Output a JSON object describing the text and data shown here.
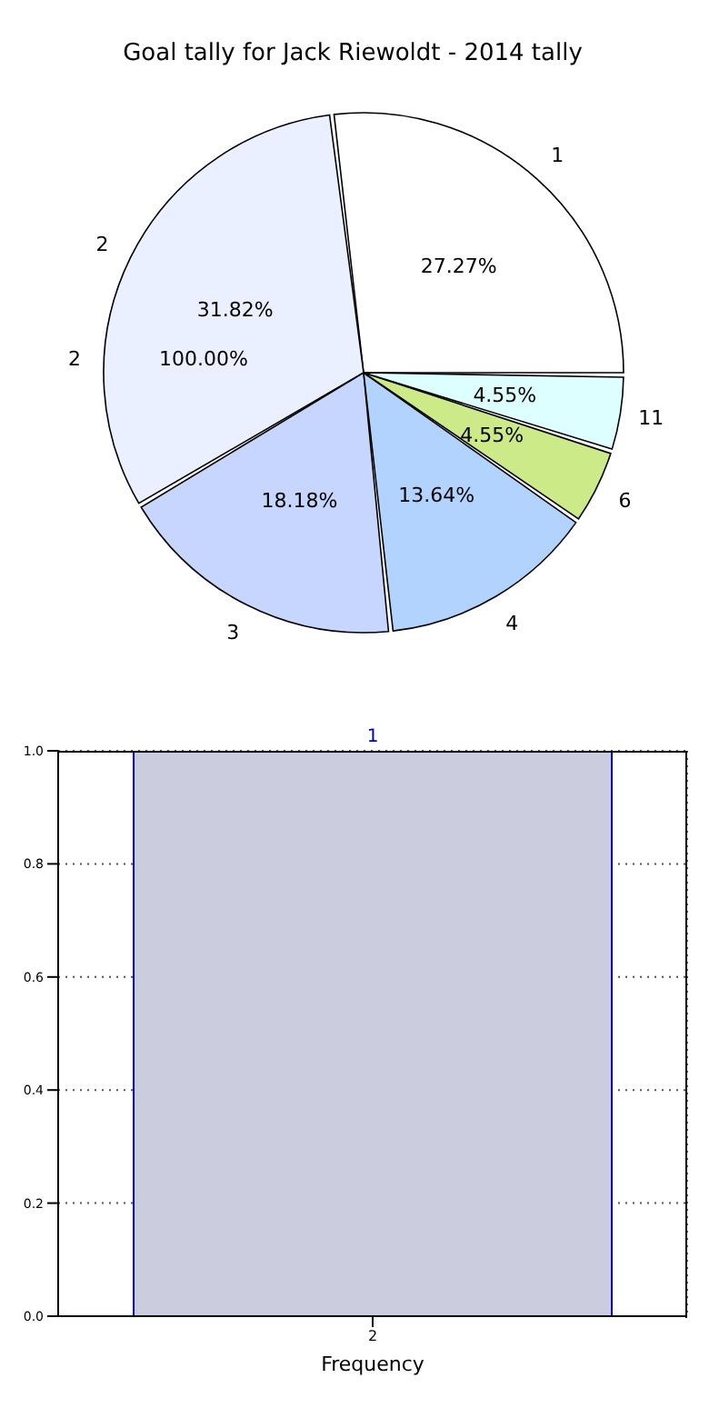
{
  "chart_data": [
    {
      "type": "pie",
      "title": "Goal tally for Jack Riewoldt - 2014 tally",
      "categories": [
        "1",
        "2",
        "3",
        "4",
        "6",
        "11"
      ],
      "values": [
        27.27,
        31.82,
        18.18,
        13.64,
        4.55,
        4.55
      ],
      "colors": [
        "#ffffff",
        "#eaf0ff",
        "#c6d6ff",
        "#b3d3ff",
        "#ccea88",
        "#ddffff"
      ],
      "value_labels": [
        "27.27%",
        "31.82%",
        "18.18%",
        "13.64%",
        "4.55%",
        "4.55%"
      ],
      "annotations": [
        "2",
        "100.00%"
      ]
    },
    {
      "type": "bar",
      "categories": [
        "2"
      ],
      "values": [
        1
      ],
      "color": "#ccccdf",
      "xlabel": "Frequency",
      "ylim": [
        0,
        1
      ],
      "yticks": [
        {
          "value": 0,
          "label": "0.0"
        },
        {
          "value": 0.2,
          "label": "0.2"
        },
        {
          "value": 0.4,
          "label": "0.4"
        },
        {
          "value": 0.6,
          "label": "0.6"
        },
        {
          "value": 0.8,
          "label": "0.8"
        },
        {
          "value": 1,
          "label": "1.0"
        }
      ],
      "grid": true,
      "data_labels": true
    }
  ]
}
